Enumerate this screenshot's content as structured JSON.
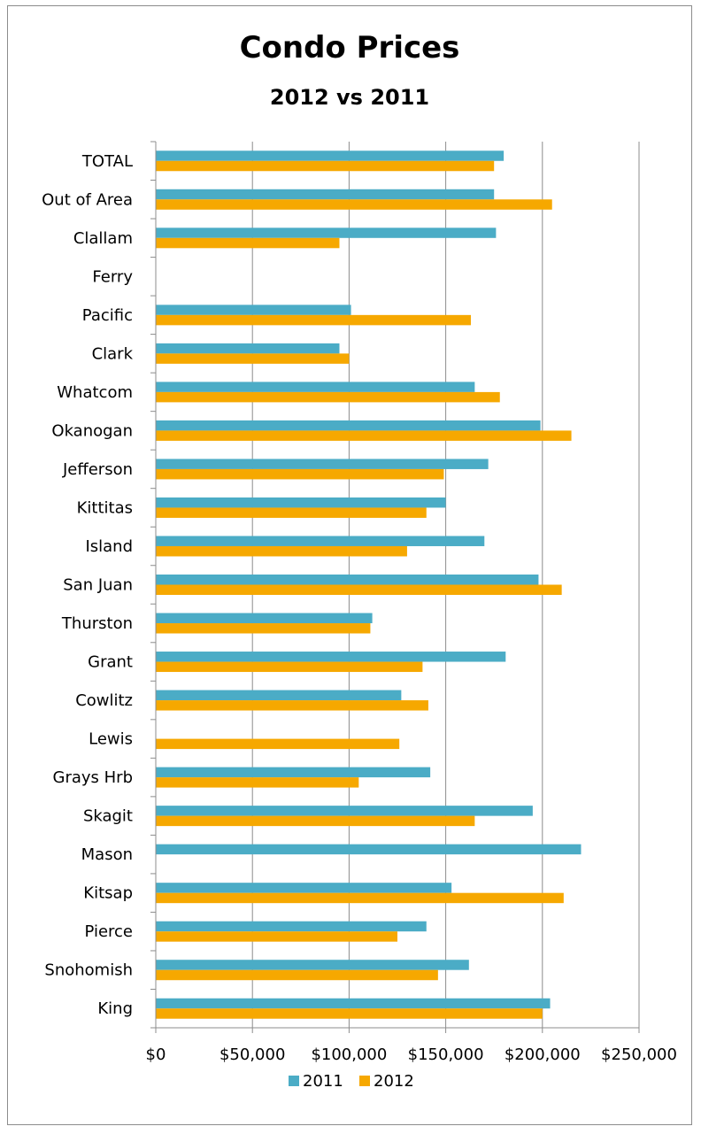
{
  "chart_data": {
    "type": "bar",
    "orientation": "horizontal",
    "title": "Condo Prices",
    "subtitle": "2012 vs 2011",
    "xlabel": "",
    "ylabel": "",
    "xlim": [
      0,
      250000
    ],
    "x_ticks": [
      0,
      50000,
      100000,
      150000,
      200000,
      250000
    ],
    "x_tick_labels": [
      "$0",
      "$50,000",
      "$100,000",
      "$150,000",
      "$200,000",
      "$250,000"
    ],
    "grid": "vertical",
    "legend": "bottom",
    "categories": [
      "TOTAL",
      "Out of Area",
      "Clallam",
      "Ferry",
      "Pacific",
      "Clark",
      "Whatcom",
      "Okanogan",
      "Jefferson",
      "Kittitas",
      "Island",
      "San Juan",
      "Thurston",
      "Grant",
      "Cowlitz",
      "Lewis",
      "Grays Hrb",
      "Skagit",
      "Mason",
      "Kitsap",
      "Pierce",
      "Snohomish",
      "King"
    ],
    "series": [
      {
        "name": "2011",
        "color": "#4bacc6",
        "values": [
          180000,
          175000,
          176000,
          null,
          101000,
          95000,
          165000,
          199000,
          172000,
          150000,
          170000,
          198000,
          112000,
          181000,
          127000,
          null,
          142000,
          195000,
          220000,
          153000,
          140000,
          162000,
          204000
        ]
      },
      {
        "name": "2012",
        "color": "#f6a800",
        "values": [
          175000,
          205000,
          95000,
          null,
          163000,
          100000,
          178000,
          215000,
          149000,
          140000,
          130000,
          210000,
          111000,
          138000,
          141000,
          126000,
          105000,
          165000,
          null,
          211000,
          125000,
          146000,
          200000
        ]
      }
    ]
  }
}
